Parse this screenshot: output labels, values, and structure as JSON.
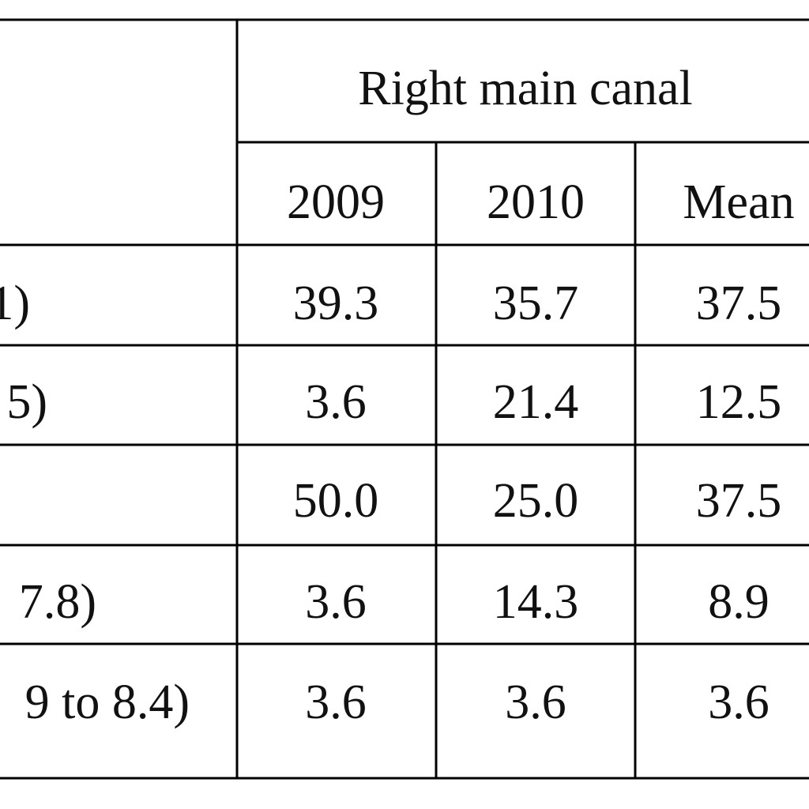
{
  "table": {
    "group_header": "Right main canal",
    "columns": [
      "2009",
      "2010",
      "Mean"
    ],
    "rows": [
      {
        "label": "1)",
        "values": [
          "39.3",
          "35.7",
          "37.5"
        ]
      },
      {
        "label": "5)",
        "values": [
          "3.6",
          "21.4",
          "12.5"
        ]
      },
      {
        "values": [
          "50.0",
          "25.0",
          "37.5"
        ]
      },
      {
        "label": "7.8)",
        "values": [
          "3.6",
          "14.3",
          "8.9"
        ]
      },
      {
        "label": "9 to 8.4)",
        "values": [
          "3.6",
          "3.6",
          "3.6"
        ]
      }
    ]
  }
}
